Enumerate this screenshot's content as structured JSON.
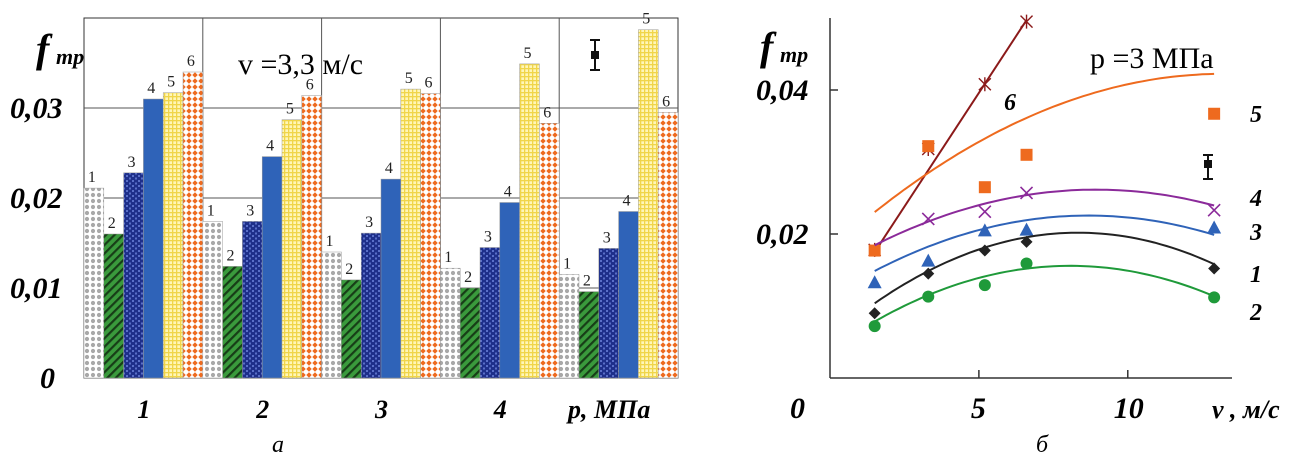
{
  "chart_data": [
    {
      "panel_label": "а",
      "type": "bar",
      "ylabel_main": "f",
      "ylabel_sub": "тр",
      "xlabel": "p, МПа",
      "annotation": "v =3,3 м/с",
      "yticks": [
        "0",
        "0,01",
        "0,02",
        "0,03"
      ],
      "ylim": [
        0,
        0.04
      ],
      "categories": [
        "1",
        "2",
        "3",
        "4",
        "5"
      ],
      "category_tick_labels": [
        "1",
        "2",
        "3",
        "4",
        ""
      ],
      "series": [
        {
          "label": "1",
          "values": [
            0.0211,
            0.0174,
            0.014,
            0.0122,
            0.0115
          ]
        },
        {
          "label": "2",
          "values": [
            0.016,
            0.0124,
            0.0109,
            0.01,
            0.0096
          ]
        },
        {
          "label": "3",
          "values": [
            0.0228,
            0.0174,
            0.0161,
            0.0145,
            0.0144
          ]
        },
        {
          "label": "4",
          "values": [
            0.031,
            0.0246,
            0.0221,
            0.0195,
            0.0185
          ]
        },
        {
          "label": "5",
          "values": [
            0.0317,
            0.0287,
            0.0321,
            0.0349,
            0.0387
          ]
        },
        {
          "label": "6",
          "values": [
            0.034,
            0.0314,
            0.0316,
            0.0283,
            0.0295
          ]
        }
      ],
      "series_colors": [
        "#b8b8b8",
        "#3a9a3c",
        "#1e2f8a",
        "#2f63b8",
        "#f7e36a",
        "#ee6a1e"
      ],
      "grid": "horizontal",
      "error_bar": true
    },
    {
      "panel_label": "б",
      "type": "line",
      "ylabel_main": "f",
      "ylabel_sub": "тр",
      "xlabel": "v , м/с",
      "annotation": "p =3 МПа",
      "xticks": [
        "0",
        "5",
        "10"
      ],
      "yticks": [
        "0,02",
        "0,04"
      ],
      "xlim": [
        0,
        13.5
      ],
      "ylim": [
        0,
        0.05
      ],
      "series": [
        {
          "label": "6",
          "color": "#8b1a1a",
          "marker": "star",
          "x": [
            1.5,
            3.3,
            5.2,
            6.6
          ],
          "y": [
            0.0178,
            0.0318,
            0.0408,
            0.0495
          ],
          "fit_x": [
            1.5,
            6.6
          ],
          "fit_y": [
            0.0175,
            0.0497
          ]
        },
        {
          "label": "5",
          "color": "#ee6a1e",
          "marker": "square",
          "x": [
            1.5,
            3.3,
            5.2,
            6.6,
            12.9
          ],
          "y": [
            0.0177,
            0.0322,
            0.0265,
            0.031,
            0.0367
          ],
          "fit": [
            0.0178,
            0.0037,
            -0.00014
          ]
        },
        {
          "label": "4",
          "color": "#8b2a9a",
          "marker": "x",
          "x": [
            3.3,
            5.2,
            6.6,
            12.9
          ],
          "y": [
            0.0221,
            0.0231,
            0.0257,
            0.0233
          ],
          "fit": [
            0.015,
            0.0025,
            -0.00014
          ]
        },
        {
          "label": "3",
          "color": "#2f63b8",
          "marker": "triangle",
          "x": [
            1.5,
            3.3,
            5.2,
            6.6,
            12.9
          ],
          "y": [
            0.0133,
            0.0163,
            0.0205,
            0.0206,
            0.0209
          ],
          "fit": [
            0.0113,
            0.0026,
            -0.00015
          ]
        },
        {
          "label": "1",
          "color": "#222222",
          "marker": "diamond",
          "x": [
            1.5,
            3.3,
            5.2,
            6.6,
            12.9
          ],
          "y": [
            0.009,
            0.0145,
            0.0177,
            0.0189,
            0.0152
          ],
          "fit": [
            0.0056,
            0.0035,
            -0.00021
          ]
        },
        {
          "label": "2",
          "color": "#1f9a3a",
          "marker": "circle",
          "x": [
            1.5,
            3.3,
            5.2,
            6.6,
            12.9
          ],
          "y": [
            0.0072,
            0.0113,
            0.0129,
            0.0159,
            0.0112
          ],
          "fit": [
            0.0039,
            0.0029,
            -0.00018
          ]
        }
      ],
      "grid": "none",
      "error_bar": true
    }
  ]
}
